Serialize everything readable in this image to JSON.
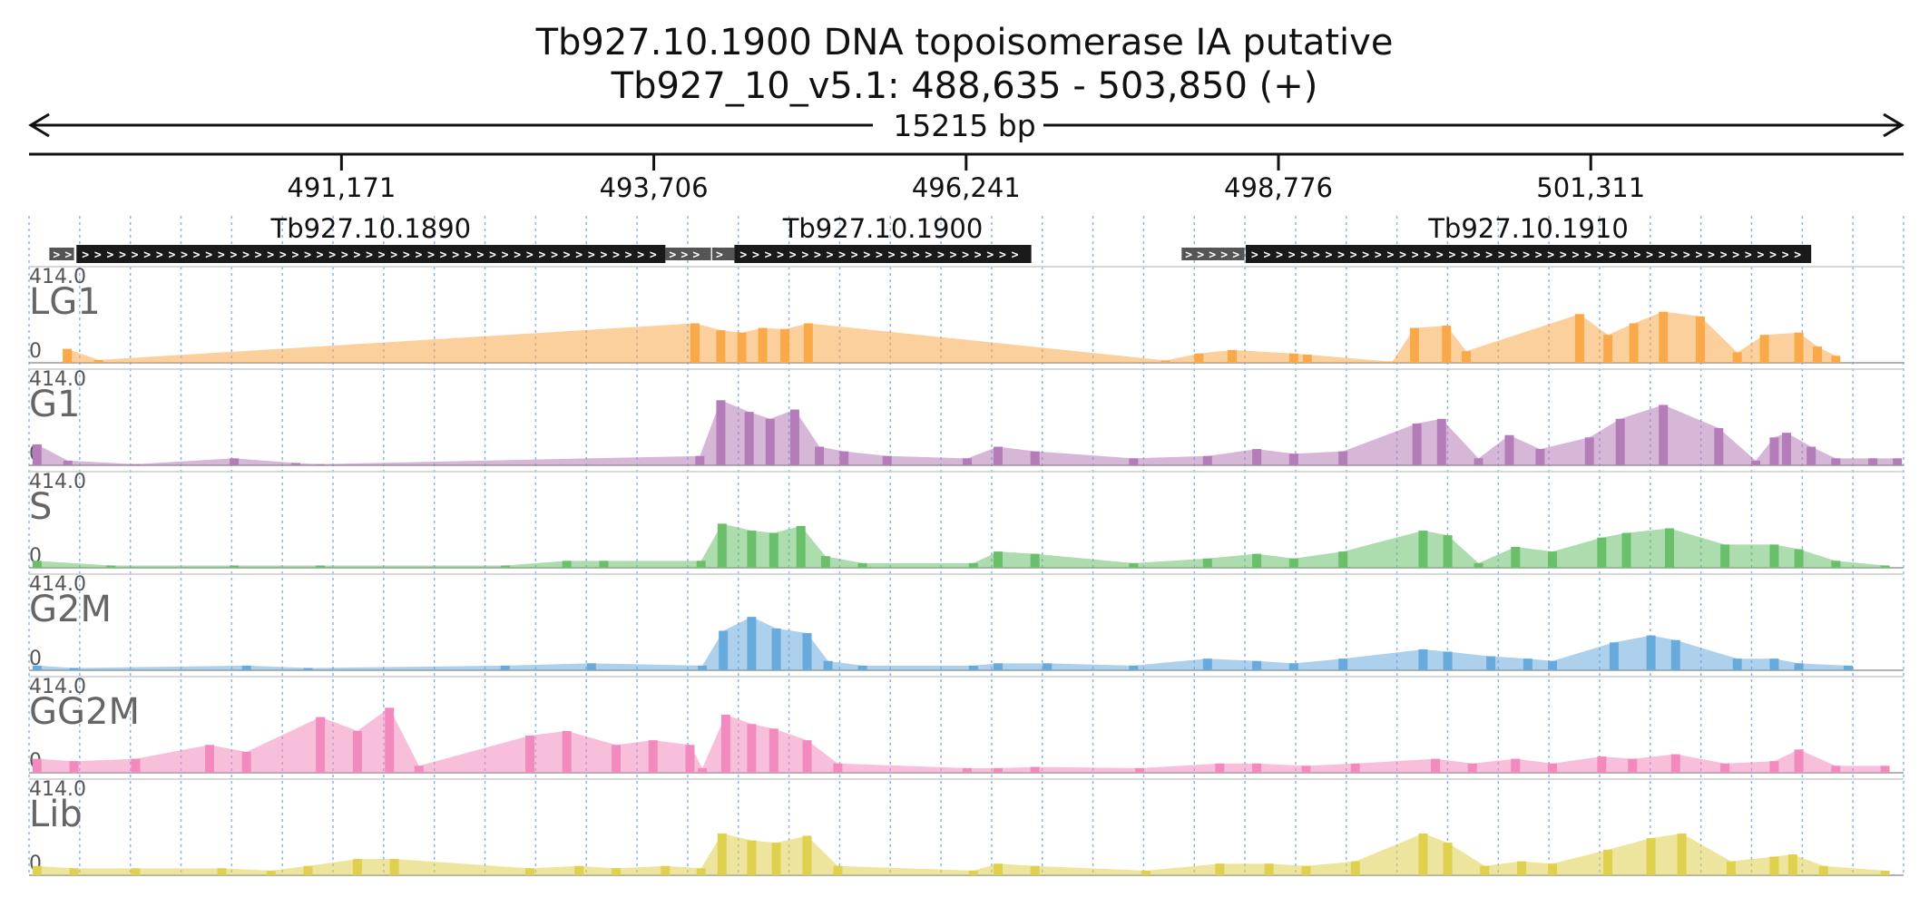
{
  "chart_data": {
    "type": "area",
    "title_line1": "Tb927.10.1900  DNA topoisomerase IA  putative",
    "title_line2": "Tb927_10_v5.1: 488,635 - 503,850 (+)",
    "span_label": "15215 bp",
    "x_range": [
      488635,
      503850
    ],
    "ticks": [
      {
        "value": 491171,
        "label": "491,171"
      },
      {
        "value": 493706,
        "label": "493,706"
      },
      {
        "value": 496241,
        "label": "496,241"
      },
      {
        "value": 498776,
        "label": "498,776"
      },
      {
        "value": 501311,
        "label": "501,311"
      }
    ],
    "genes": [
      {
        "name": "Tb927.10.1890",
        "utr5": [
          488800,
          489000
        ],
        "cds": [
          489020,
          493800
        ],
        "utr3": [
          493800,
          494170
        ]
      },
      {
        "name": "Tb927.10.1900",
        "utr5": [
          494180,
          494360
        ],
        "cds": [
          494360,
          496770
        ],
        "utr3": []
      },
      {
        "name": "Tb927.10.1910",
        "utr5": [
          497990,
          498500
        ],
        "cds": [
          498510,
          503100
        ],
        "utr3": []
      }
    ],
    "y_range": [
      0,
      414.0
    ],
    "y_max_label": "414.0",
    "y_min_label": "0",
    "series": [
      {
        "name": "LG1",
        "color": "#f9a94b",
        "values": [
          [
            488945,
            60
          ],
          [
            489200,
            12
          ],
          [
            494040,
            170
          ],
          [
            494250,
            140
          ],
          [
            494420,
            130
          ],
          [
            494590,
            150
          ],
          [
            494770,
            145
          ],
          [
            494960,
            170
          ],
          [
            497860,
            10
          ],
          [
            498130,
            40
          ],
          [
            498400,
            55
          ],
          [
            498900,
            40
          ],
          [
            499010,
            35
          ],
          [
            499700,
            5
          ],
          [
            499880,
            150
          ],
          [
            500140,
            160
          ],
          [
            500300,
            50
          ],
          [
            501220,
            210
          ],
          [
            501450,
            120
          ],
          [
            501660,
            170
          ],
          [
            501900,
            220
          ],
          [
            502200,
            200
          ],
          [
            502500,
            45
          ],
          [
            502720,
            120
          ],
          [
            503000,
            130
          ],
          [
            503150,
            70
          ],
          [
            503300,
            30
          ]
        ]
      },
      {
        "name": "G1",
        "color": "#b47cb8",
        "values": [
          [
            488700,
            90
          ],
          [
            488950,
            20
          ],
          [
            489500,
            5
          ],
          [
            490300,
            30
          ],
          [
            490800,
            10
          ],
          [
            491000,
            5
          ],
          [
            494080,
            40
          ],
          [
            494250,
            280
          ],
          [
            494480,
            230
          ],
          [
            494650,
            200
          ],
          [
            494850,
            240
          ],
          [
            495050,
            80
          ],
          [
            495250,
            60
          ],
          [
            495600,
            40
          ],
          [
            496250,
            30
          ],
          [
            496500,
            80
          ],
          [
            496800,
            60
          ],
          [
            497600,
            30
          ],
          [
            498200,
            40
          ],
          [
            498600,
            70
          ],
          [
            498900,
            50
          ],
          [
            499300,
            60
          ],
          [
            499900,
            180
          ],
          [
            500100,
            200
          ],
          [
            500400,
            30
          ],
          [
            500650,
            130
          ],
          [
            500900,
            70
          ],
          [
            501300,
            120
          ],
          [
            501550,
            200
          ],
          [
            501900,
            260
          ],
          [
            502350,
            160
          ],
          [
            502650,
            20
          ],
          [
            502800,
            120
          ],
          [
            502900,
            140
          ],
          [
            503100,
            80
          ],
          [
            503300,
            30
          ],
          [
            503600,
            30
          ],
          [
            503800,
            30
          ]
        ]
      },
      {
        "name": "S",
        "color": "#6abf6b",
        "values": [
          [
            488700,
            30
          ],
          [
            489300,
            10
          ],
          [
            490300,
            10
          ],
          [
            491000,
            10
          ],
          [
            492500,
            10
          ],
          [
            493000,
            30
          ],
          [
            493300,
            30
          ],
          [
            494090,
            30
          ],
          [
            494260,
            190
          ],
          [
            494500,
            160
          ],
          [
            494680,
            150
          ],
          [
            494900,
            180
          ],
          [
            495100,
            50
          ],
          [
            495400,
            20
          ],
          [
            496300,
            20
          ],
          [
            496500,
            70
          ],
          [
            496800,
            60
          ],
          [
            497600,
            20
          ],
          [
            498200,
            40
          ],
          [
            498600,
            60
          ],
          [
            498900,
            40
          ],
          [
            499300,
            70
          ],
          [
            499950,
            160
          ],
          [
            500150,
            140
          ],
          [
            500400,
            20
          ],
          [
            500700,
            90
          ],
          [
            501000,
            70
          ],
          [
            501400,
            130
          ],
          [
            501600,
            150
          ],
          [
            501950,
            170
          ],
          [
            502400,
            100
          ],
          [
            502800,
            100
          ],
          [
            503000,
            80
          ],
          [
            503300,
            30
          ],
          [
            503700,
            10
          ]
        ]
      },
      {
        "name": "G2M",
        "color": "#69aadd",
        "values": [
          [
            488700,
            20
          ],
          [
            489000,
            10
          ],
          [
            490400,
            20
          ],
          [
            490900,
            10
          ],
          [
            492500,
            20
          ],
          [
            493200,
            30
          ],
          [
            494100,
            20
          ],
          [
            494270,
            170
          ],
          [
            494500,
            230
          ],
          [
            494700,
            180
          ],
          [
            494950,
            160
          ],
          [
            495120,
            40
          ],
          [
            495400,
            20
          ],
          [
            496300,
            20
          ],
          [
            496500,
            30
          ],
          [
            496900,
            30
          ],
          [
            497600,
            20
          ],
          [
            498200,
            50
          ],
          [
            498600,
            40
          ],
          [
            498900,
            30
          ],
          [
            499300,
            50
          ],
          [
            499950,
            90
          ],
          [
            500150,
            80
          ],
          [
            500500,
            60
          ],
          [
            500800,
            50
          ],
          [
            501000,
            40
          ],
          [
            501500,
            120
          ],
          [
            501800,
            150
          ],
          [
            502000,
            130
          ],
          [
            502500,
            50
          ],
          [
            502800,
            50
          ],
          [
            503000,
            30
          ],
          [
            503400,
            20
          ]
        ]
      },
      {
        "name": "GG2M",
        "color": "#f28bbd",
        "values": [
          [
            488700,
            60
          ],
          [
            489000,
            50
          ],
          [
            489500,
            60
          ],
          [
            490100,
            120
          ],
          [
            490400,
            90
          ],
          [
            491000,
            240
          ],
          [
            491300,
            180
          ],
          [
            491560,
            280
          ],
          [
            491800,
            30
          ],
          [
            492700,
            160
          ],
          [
            493000,
            180
          ],
          [
            493400,
            120
          ],
          [
            493700,
            140
          ],
          [
            494000,
            120
          ],
          [
            494100,
            20
          ],
          [
            494290,
            250
          ],
          [
            494500,
            210
          ],
          [
            494680,
            190
          ],
          [
            494950,
            140
          ],
          [
            495200,
            40
          ],
          [
            496250,
            20
          ],
          [
            496500,
            20
          ],
          [
            496800,
            25
          ],
          [
            497650,
            20
          ],
          [
            498300,
            40
          ],
          [
            498600,
            40
          ],
          [
            499000,
            30
          ],
          [
            499400,
            40
          ],
          [
            500050,
            60
          ],
          [
            500350,
            40
          ],
          [
            500700,
            60
          ],
          [
            501000,
            40
          ],
          [
            501400,
            70
          ],
          [
            501650,
            60
          ],
          [
            502000,
            80
          ],
          [
            502400,
            40
          ],
          [
            502800,
            50
          ],
          [
            503000,
            100
          ],
          [
            503300,
            30
          ],
          [
            503700,
            30
          ]
        ]
      },
      {
        "name": "Lib",
        "color": "#dfd04f",
        "values": [
          [
            488700,
            40
          ],
          [
            489000,
            30
          ],
          [
            489500,
            30
          ],
          [
            490200,
            30
          ],
          [
            490600,
            20
          ],
          [
            490900,
            40
          ],
          [
            491300,
            70
          ],
          [
            491600,
            70
          ],
          [
            492700,
            30
          ],
          [
            493100,
            40
          ],
          [
            493400,
            30
          ],
          [
            493800,
            40
          ],
          [
            494090,
            30
          ],
          [
            494260,
            180
          ],
          [
            494500,
            150
          ],
          [
            494700,
            140
          ],
          [
            494950,
            170
          ],
          [
            495200,
            40
          ],
          [
            496300,
            20
          ],
          [
            496500,
            50
          ],
          [
            496800,
            40
          ],
          [
            497700,
            20
          ],
          [
            498300,
            50
          ],
          [
            498700,
            50
          ],
          [
            499000,
            40
          ],
          [
            499400,
            60
          ],
          [
            499950,
            180
          ],
          [
            500150,
            140
          ],
          [
            500450,
            40
          ],
          [
            500750,
            60
          ],
          [
            501000,
            50
          ],
          [
            501450,
            110
          ],
          [
            501800,
            160
          ],
          [
            502050,
            180
          ],
          [
            502450,
            60
          ],
          [
            502800,
            80
          ],
          [
            502950,
            90
          ],
          [
            503200,
            40
          ],
          [
            503700,
            20
          ]
        ]
      }
    ],
    "grid": true
  }
}
